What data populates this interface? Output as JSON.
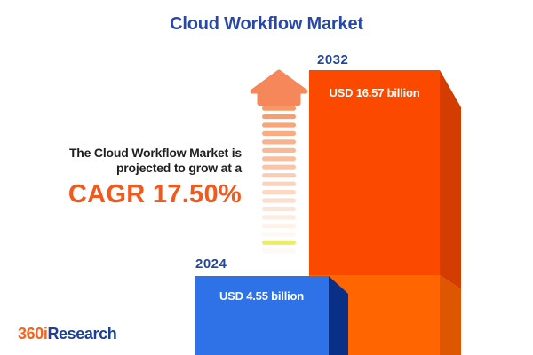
{
  "title": "Cloud Workflow Market",
  "message": {
    "line1": "The Cloud Workflow Market is",
    "line2": "projected to grow at a",
    "cagr": "CAGR 17.50%"
  },
  "chart_data": {
    "type": "bar",
    "title": "Cloud Workflow Market",
    "categories": [
      "2024",
      "2032"
    ],
    "values": [
      4.55,
      16.57
    ],
    "unit": "USD billion",
    "value_labels": [
      "USD 4.55 billion",
      "USD 16.57 billion"
    ],
    "cagr_percent": 17.5,
    "ylim": [
      0,
      16.57
    ],
    "grid": false,
    "legend": "none"
  },
  "brand": {
    "prefix": "360i",
    "suffix": "Research"
  },
  "icons": {
    "growth_arrow": "striped-up-arrow-icon"
  },
  "colors": {
    "background": "#FFFFFF",
    "title_blue": "#2847A8",
    "year_label_blue": "#24479E",
    "body_text": "#1F1F1F",
    "cagr_orange": "#F4591B",
    "bar_2024_front": "#2F72E7",
    "bar_2024_side": "#0A2F87",
    "bar_2032_front_upper": "#FB4A00",
    "bar_2032_front_lower": "#FF6500",
    "bar_2032_side_upper": "#D43D02",
    "bar_2032_side_lower": "#DE5502",
    "arrow_head": "#F5875A",
    "arrow_stripe": "#F79867",
    "arrow_stripe_yellow": "#E9E93F",
    "logo_orange": "#F26522",
    "logo_blue": "#1E3F97"
  }
}
